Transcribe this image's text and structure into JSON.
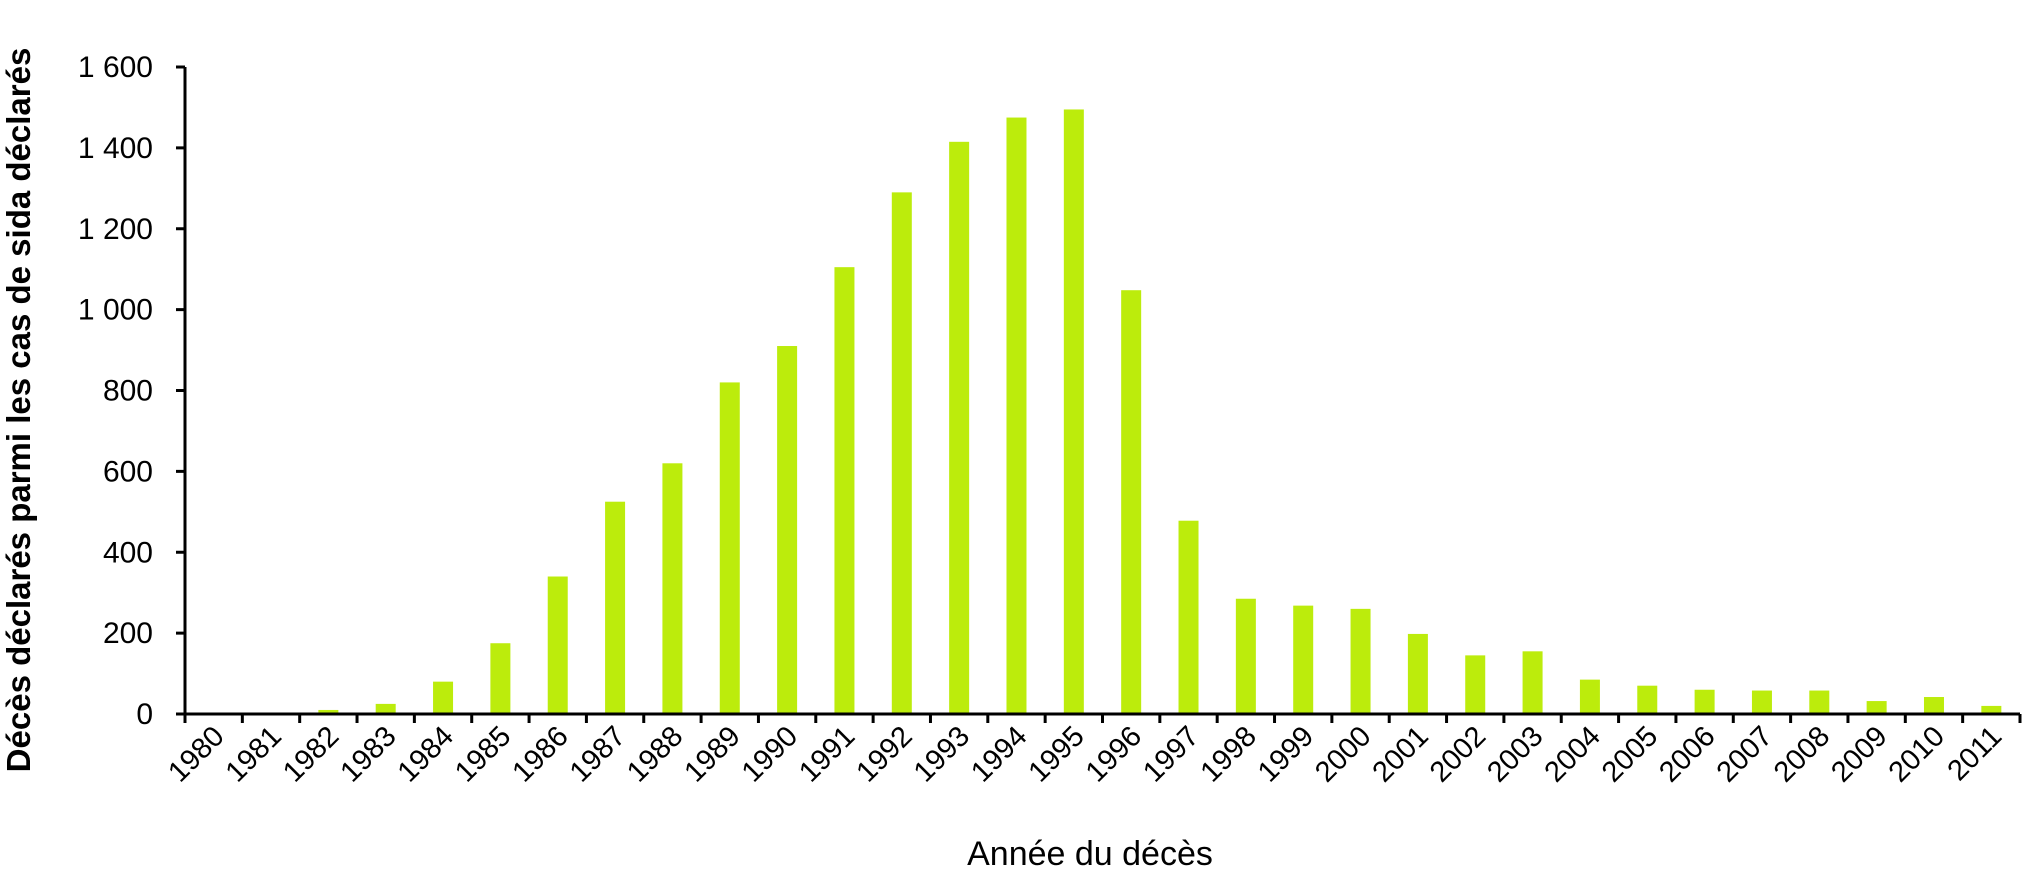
{
  "chart_data": {
    "type": "bar",
    "title": "",
    "xlabel": "Année du décès",
    "ylabel": "Décès déclarés parmi les cas de sida déclarés",
    "ylim": [
      0,
      1600
    ],
    "yticks": [
      0,
      200,
      400,
      600,
      800,
      1000,
      1200,
      1400,
      1600
    ],
    "ytick_labels": [
      "0",
      "200",
      "400",
      "600",
      "800",
      "1 000",
      "1 200",
      "1 400",
      "1 600"
    ],
    "categories": [
      "1980",
      "1981",
      "1982",
      "1983",
      "1984",
      "1985",
      "1986",
      "1987",
      "1988",
      "1989",
      "1990",
      "1991",
      "1992",
      "1993",
      "1994",
      "1995",
      "1996",
      "1997",
      "1998",
      "1999",
      "2000",
      "2001",
      "2002",
      "2003",
      "2004",
      "2005",
      "2006",
      "2007",
      "2008",
      "2009",
      "2010",
      "2011"
    ],
    "values": [
      0,
      0,
      10,
      25,
      80,
      175,
      340,
      525,
      620,
      820,
      910,
      1105,
      1290,
      1415,
      1475,
      1495,
      1048,
      478,
      285,
      268,
      260,
      198,
      145,
      155,
      85,
      70,
      60,
      58,
      58,
      32,
      42,
      20
    ],
    "bar_color": "#bcec0c",
    "grid": false,
    "legend": "none"
  }
}
